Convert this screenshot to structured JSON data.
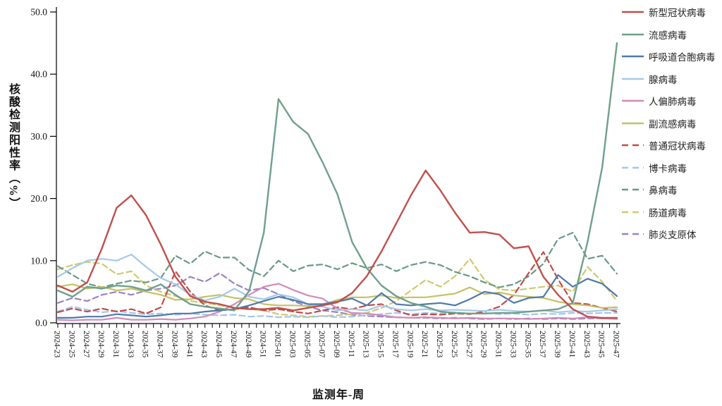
{
  "chart_data": {
    "type": "line",
    "title": "",
    "xlabel": "监测年-周",
    "ylabel": "核酸检测阳性率（%）",
    "ylim": [
      0,
      50
    ],
    "yticks": [
      0,
      10,
      20,
      30,
      40,
      50
    ],
    "ytick_labels": [
      "0.0",
      "10.0",
      "20.0",
      "30.0",
      "40.0",
      "50.0"
    ],
    "grid": false,
    "legend_position": "right",
    "categories": [
      "2024-23",
      "2024-25",
      "2024-27",
      "2024-29",
      "2024-31",
      "2024-33",
      "2024-35",
      "2024-37",
      "2024-39",
      "2024-41",
      "2024-43",
      "2024-45",
      "2024-47",
      "2024-49",
      "2024-51",
      "2025-01",
      "2025-03",
      "2025-05",
      "2025-07",
      "2025-09",
      "2025-11",
      "2025-13",
      "2025-15",
      "2025-17",
      "2025-19",
      "2025-21",
      "2025-23",
      "2025-25",
      "2025-27",
      "2025-29",
      "2025-31",
      "2025-33",
      "2025-35",
      "2025-37",
      "2025-39",
      "2025-41",
      "2025-43",
      "2025-45",
      "2025-47"
    ],
    "series": [
      {
        "name": "新型冠状病毒",
        "style": "solid",
        "color": "#C0504D",
        "width": 2.4,
        "values": [
          6,
          5,
          6.5,
          12,
          18.5,
          20.5,
          17.3,
          12.6,
          7.4,
          4.3,
          3.4,
          3,
          2.4,
          2.2,
          2.2,
          2.4,
          2,
          2.4,
          2.8,
          3.3,
          4.8,
          7.5,
          11.5,
          16,
          20.5,
          24.5,
          21.3,
          17.7,
          14.5,
          14.6,
          14.2,
          12,
          12.3,
          7.4,
          4.5,
          2.2,
          1,
          0.8,
          0.8
        ]
      },
      {
        "name": "流感病毒",
        "style": "solid",
        "color": "#6FA08B",
        "width": 2.4,
        "values": [
          5.2,
          4.2,
          5.8,
          5.5,
          6,
          5.8,
          5.2,
          6.2,
          4.5,
          3,
          2.6,
          2.3,
          2,
          5.1,
          14.5,
          36,
          32.3,
          30.4,
          25.8,
          20.7,
          13,
          8.8,
          6,
          4.3,
          3.2,
          2.6,
          1.8,
          1.6,
          1.5,
          1.5,
          1.6,
          1.6,
          1.8,
          2,
          2.2,
          3.2,
          13,
          25,
          45
        ]
      },
      {
        "name": "呼吸道合胞病毒",
        "style": "solid",
        "color": "#4D7AAB",
        "width": 2.2,
        "values": [
          0.8,
          0.8,
          1,
          1,
          1.4,
          1.2,
          1,
          1.2,
          1.5,
          1.5,
          1.8,
          2,
          2.2,
          2.8,
          3.5,
          4.2,
          3.7,
          3,
          3,
          3.4,
          3.9,
          2.8,
          4.8,
          3,
          2.8,
          3,
          3.2,
          2.8,
          3.8,
          5,
          4.6,
          3.2,
          4,
          4.2,
          7.7,
          5.8,
          7.1,
          6.3,
          4.3
        ]
      },
      {
        "name": "腺病毒",
        "style": "solid",
        "color": "#A6C9E9",
        "width": 2.2,
        "values": [
          7.4,
          8.8,
          10,
          10.3,
          10,
          11,
          9,
          7.2,
          6.2,
          4.5,
          3.6,
          4.2,
          5.5,
          4.2,
          3.8,
          4.6,
          4.1,
          3,
          2.6,
          2,
          2.2,
          2,
          2.8,
          2.2,
          2,
          2.2,
          2,
          2.1,
          2,
          1.9,
          2.1,
          1.9,
          1.8,
          2,
          1.7,
          1.9,
          1.8,
          2,
          2.2
        ]
      },
      {
        "name": "人偏肺病毒",
        "style": "solid",
        "color": "#D28BB8",
        "width": 2.2,
        "values": [
          0.5,
          0.4,
          0.5,
          0.5,
          0.8,
          0.5,
          0.5,
          0.6,
          0.5,
          0.7,
          1,
          1.8,
          3,
          4.5,
          5.8,
          6.3,
          5.3,
          4.4,
          3.9,
          2.3,
          1.6,
          1.5,
          1.2,
          0.9,
          0.8,
          0.9,
          0.8,
          0.7,
          0.8,
          0.7,
          0.7,
          0.7,
          0.6,
          0.7,
          0.8,
          0.7,
          0.9,
          0.7,
          0.6
        ]
      },
      {
        "name": "副流感病毒",
        "style": "solid",
        "color": "#C5C165",
        "width": 2.2,
        "values": [
          5.8,
          6.2,
          5.5,
          5.8,
          5.2,
          5.5,
          5,
          4.5,
          3.7,
          3.8,
          4.2,
          4.5,
          4,
          3.8,
          3,
          2.8,
          2.8,
          2.7,
          2.9,
          3.7,
          4.1,
          4.1,
          4.4,
          4,
          4.1,
          4.1,
          4.4,
          4.7,
          5.7,
          4.6,
          4.9,
          4.4,
          4.2,
          4,
          3.4,
          3,
          2.8,
          2.4,
          2.5
        ]
      },
      {
        "name": "普通冠状病毒",
        "style": "dashed",
        "color": "#C54A4A",
        "width": 2.2,
        "values": [
          1.7,
          2.3,
          1.8,
          2.3,
          1.8,
          2.2,
          1.5,
          2.5,
          8.3,
          5,
          2.8,
          2,
          2.2,
          2.5,
          2,
          2.2,
          1.8,
          1.5,
          2,
          2.5,
          2.2,
          2.8,
          3,
          2,
          1.2,
          1.4,
          1.3,
          1.5,
          1.4,
          1.8,
          2.6,
          4.5,
          8,
          11.4,
          7,
          3.2,
          3,
          2.4,
          1.8
        ]
      },
      {
        "name": "博卡病毒",
        "style": "dashed",
        "color": "#A3C6EC",
        "width": 2.2,
        "values": [
          1.8,
          2.6,
          2.1,
          1.7,
          1.9,
          1.6,
          1.4,
          1.5,
          1.3,
          1.5,
          1.3,
          1.2,
          1.3,
          1,
          1.1,
          0.9,
          1,
          0.9,
          1.1,
          0.9,
          1,
          1.2,
          1.4,
          1.6,
          1.4,
          1.6,
          1.5,
          1.7,
          1.5,
          1.6,
          1.4,
          1.5,
          1.3,
          1.5,
          1.4,
          1.6,
          1.5,
          1.6,
          1.6
        ]
      },
      {
        "name": "鼻病毒",
        "style": "dashed",
        "color": "#699A85",
        "width": 2.2,
        "values": [
          9.1,
          7.7,
          6.3,
          5.7,
          6.3,
          6.8,
          6.5,
          7.2,
          10.8,
          9.5,
          11.5,
          10.5,
          10.5,
          8.5,
          7.5,
          10,
          8.3,
          9.2,
          9.4,
          8.6,
          9.6,
          8.8,
          9.4,
          8.3,
          9.3,
          9.8,
          9.3,
          8.2,
          7.5,
          6.5,
          5.7,
          6.2,
          7.5,
          9.5,
          13.5,
          14.5,
          10.3,
          10.8,
          7.9
        ]
      },
      {
        "name": "肠道病毒",
        "style": "dashed",
        "color": "#CFC96E",
        "width": 2.2,
        "values": [
          8.6,
          9.3,
          9.8,
          9.5,
          7.8,
          8.3,
          6,
          5,
          4.3,
          3.5,
          3.2,
          2.8,
          2.4,
          2.2,
          2,
          1.4,
          1.2,
          1,
          1.1,
          1.2,
          1.4,
          1.6,
          2.4,
          3.5,
          5.2,
          6.9,
          5.8,
          7.5,
          10.3,
          6.9,
          5.4,
          5.2,
          5.5,
          5.8,
          6,
          5,
          9,
          6.6,
          3.5
        ]
      },
      {
        "name": "肺炎支原体",
        "style": "dashed",
        "color": "#9B82C4",
        "width": 2.2,
        "values": [
          3.2,
          4,
          3.5,
          4.5,
          5,
          4.5,
          5.2,
          5.5,
          6,
          7.4,
          6.6,
          8,
          6.3,
          5.2,
          5.6,
          4.6,
          3.5,
          2.6,
          2,
          1.7,
          1.3,
          1.1,
          1,
          0.9,
          0.8,
          0.8,
          0.7,
          0.8,
          0.7,
          0.6,
          0.7,
          0.6,
          0.7,
          0.6,
          0.7,
          0.6,
          0.7,
          0.7,
          0.7
        ]
      }
    ]
  }
}
